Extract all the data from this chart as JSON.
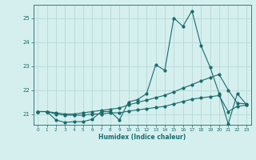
{
  "title": "",
  "xlabel": "Humidex (Indice chaleur)",
  "bg_color": "#d5efef",
  "grid_color": "#b8d8d8",
  "line_color": "#1a6b6b",
  "xlim": [
    -0.5,
    23.5
  ],
  "ylim": [
    20.55,
    25.55
  ],
  "yticks": [
    21,
    22,
    23,
    24,
    25
  ],
  "xticks": [
    0,
    1,
    2,
    3,
    4,
    5,
    6,
    7,
    8,
    9,
    10,
    11,
    12,
    13,
    14,
    15,
    16,
    17,
    18,
    19,
    20,
    21,
    22,
    23
  ],
  "line1": [
    21.1,
    21.1,
    20.75,
    20.65,
    20.68,
    20.68,
    20.78,
    21.1,
    21.1,
    20.75,
    21.5,
    21.6,
    21.85,
    23.05,
    22.82,
    25.0,
    24.65,
    25.3,
    23.85,
    22.95,
    21.85,
    20.58,
    21.85,
    21.4
  ],
  "line2": [
    21.1,
    21.1,
    21.05,
    21.0,
    21.0,
    21.05,
    21.1,
    21.15,
    21.2,
    21.25,
    21.38,
    21.48,
    21.58,
    21.68,
    21.78,
    21.92,
    22.08,
    22.22,
    22.38,
    22.52,
    22.65,
    22.0,
    21.45,
    21.42
  ],
  "line3": [
    21.1,
    21.1,
    21.0,
    20.95,
    20.95,
    20.95,
    21.0,
    21.0,
    21.05,
    21.05,
    21.12,
    21.17,
    21.22,
    21.27,
    21.32,
    21.42,
    21.52,
    21.62,
    21.67,
    21.72,
    21.77,
    21.1,
    21.32,
    21.37
  ]
}
